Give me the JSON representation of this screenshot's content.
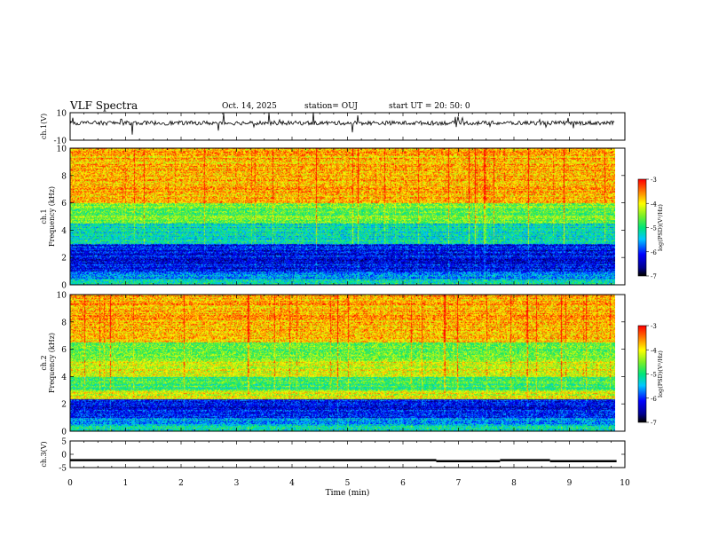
{
  "header": {
    "title": "VLF Spectra",
    "date": "Oct. 14, 2025",
    "station": "station= OUJ",
    "start": "start  UT  =   20: 50: 0"
  },
  "chart_data": [
    {
      "type": "line",
      "panel": "ch1-waveform",
      "ylabel": "ch.1(V)",
      "ylim": [
        -10,
        10
      ],
      "yticks": [
        "10",
        "-10"
      ],
      "xlim": [
        0,
        10
      ],
      "series": [
        {
          "values_description_free": true
        }
      ]
    },
    {
      "type": "heatmap",
      "panel": "ch1-spectrogram",
      "ylabel": "ch.1 Frequency (kHz)",
      "ylim": [
        0,
        10
      ],
      "yticks": [
        "0",
        "2",
        "4",
        "6",
        "8",
        "10"
      ],
      "xlim": [
        0,
        10
      ],
      "colorbar": {
        "label": "log(PSD)(V²/Hz)",
        "range": [
          -7,
          -3
        ],
        "ticks": [
          "-3",
          "-4",
          "-5",
          "-6",
          "-7"
        ]
      }
    },
    {
      "type": "heatmap",
      "panel": "ch2-spectrogram",
      "ylabel": "ch.2 Frequency (kHz)",
      "ylim": [
        0,
        10
      ],
      "yticks": [
        "0",
        "2",
        "4",
        "6",
        "8",
        "10"
      ],
      "xlim": [
        0,
        10
      ],
      "colorbar": {
        "label": "log(PSD)(V²/Hz)",
        "range": [
          -7,
          -3
        ],
        "ticks": [
          "-3",
          "-4",
          "-5",
          "-6",
          "-7"
        ]
      }
    },
    {
      "type": "line",
      "panel": "ch3-waveform",
      "ylabel": "ch.3(V)",
      "ylim": [
        -5,
        5
      ],
      "yticks": [
        "5",
        "0",
        "-5"
      ],
      "xlim": [
        0,
        10
      ],
      "xlabel": "Time  (min)",
      "xticks": [
        "0",
        "1",
        "2",
        "3",
        "4",
        "5",
        "6",
        "7",
        "8",
        "9",
        "10"
      ],
      "series": [
        {
          "segments": [
            [
              0,
              6.6,
              -2.2
            ],
            [
              6.6,
              7.75,
              -2.6
            ],
            [
              7.75,
              8.65,
              -2.2
            ],
            [
              8.65,
              9.85,
              -2.6
            ]
          ]
        }
      ]
    }
  ],
  "colors": {
    "high": "#ff0000",
    "mid": "#ffff00",
    "low": "#0000ff",
    "min": "#000000"
  }
}
